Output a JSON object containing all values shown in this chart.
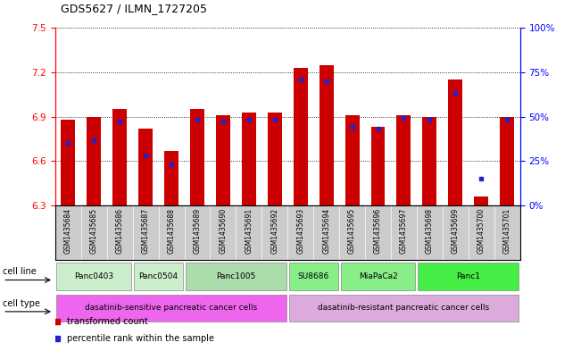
{
  "title": "GDS5627 / ILMN_1727205",
  "samples": [
    "GSM1435684",
    "GSM1435685",
    "GSM1435686",
    "GSM1435687",
    "GSM1435688",
    "GSM1435689",
    "GSM1435690",
    "GSM1435691",
    "GSM1435692",
    "GSM1435693",
    "GSM1435694",
    "GSM1435695",
    "GSM1435696",
    "GSM1435697",
    "GSM1435698",
    "GSM1435699",
    "GSM1435700",
    "GSM1435701"
  ],
  "bar_values": [
    6.88,
    6.9,
    6.95,
    6.82,
    6.67,
    6.95,
    6.91,
    6.93,
    6.93,
    7.23,
    7.25,
    6.91,
    6.83,
    6.91,
    6.9,
    7.15,
    6.36,
    6.9
  ],
  "blue_values": [
    6.72,
    6.74,
    6.87,
    6.64,
    6.58,
    6.88,
    6.87,
    6.88,
    6.88,
    7.15,
    7.14,
    6.83,
    6.82,
    6.89,
    6.88,
    7.06,
    6.48,
    6.88
  ],
  "ymin": 6.3,
  "ymax": 7.5,
  "yticks": [
    6.3,
    6.6,
    6.9,
    7.2,
    7.5
  ],
  "yright_ticks": [
    0,
    25,
    50,
    75,
    100
  ],
  "yright_labels": [
    "0%",
    "25%",
    "50%",
    "75%",
    "100%"
  ],
  "bar_color": "#cc0000",
  "blue_color": "#2222cc",
  "cell_lines": [
    {
      "name": "Panc0403",
      "start": 0,
      "end": 3,
      "color": "#cceecc"
    },
    {
      "name": "Panc0504",
      "start": 3,
      "end": 5,
      "color": "#cceecc"
    },
    {
      "name": "Panc1005",
      "start": 5,
      "end": 9,
      "color": "#aaddaa"
    },
    {
      "name": "SU8686",
      "start": 9,
      "end": 11,
      "color": "#88ee88"
    },
    {
      "name": "MiaPaCa2",
      "start": 11,
      "end": 14,
      "color": "#88ee88"
    },
    {
      "name": "Panc1",
      "start": 14,
      "end": 18,
      "color": "#44ee44"
    }
  ],
  "cell_types": [
    {
      "name": "dasatinib-sensitive pancreatic cancer cells",
      "start": 0,
      "end": 9,
      "color": "#ee66ee"
    },
    {
      "name": "dasatinib-resistant pancreatic cancer cells",
      "start": 9,
      "end": 18,
      "color": "#ddaadd"
    }
  ],
  "legend_items": [
    {
      "label": "transformed count",
      "color": "#cc0000"
    },
    {
      "label": "percentile rank within the sample",
      "color": "#2222cc"
    }
  ],
  "xtick_bg_color": "#cccccc",
  "label_fontsize": 7,
  "tick_fontsize": 7.5
}
